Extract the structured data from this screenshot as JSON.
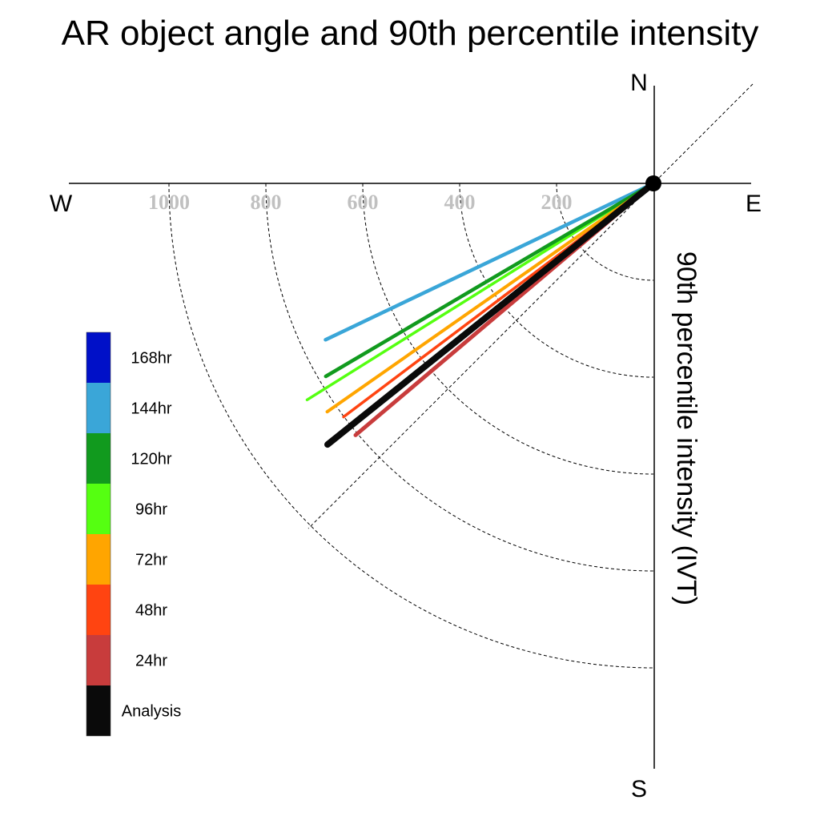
{
  "chart_data": {
    "type": "polar-vector",
    "title": "AR object angle and 90th percentile intensity",
    "radial_label": "90th percentile intensity (IVT)",
    "compass": {
      "north": "N",
      "south": "S",
      "east": "E",
      "west": "W"
    },
    "radial_ticks": [
      200,
      400,
      600,
      800,
      1000
    ],
    "grid": true,
    "legend_position": "left",
    "series": [
      {
        "name": "168hr",
        "color": "#0010c8",
        "angle_deg": null,
        "intensity": null
      },
      {
        "name": "144hr",
        "color": "#3aa6d8",
        "angle_deg": 244.5,
        "intensity": 750
      },
      {
        "name": "120hr",
        "color": "#119a1e",
        "angle_deg": 239.5,
        "intensity": 785
      },
      {
        "name": "96hr",
        "color": "#55ff11",
        "angle_deg": 238.0,
        "intensity": 843
      },
      {
        "name": "72hr",
        "color": "#ffa500",
        "angle_deg": 235.0,
        "intensity": 822
      },
      {
        "name": "48hr",
        "color": "#ff4411",
        "angle_deg": 233.0,
        "intensity": 801
      },
      {
        "name": "24hr",
        "color": "#c83c3c",
        "angle_deg": 229.8,
        "intensity": 805
      },
      {
        "name": "Analysis",
        "color": "#0a0a0a",
        "angle_deg": 231.3,
        "intensity": 862
      }
    ]
  }
}
